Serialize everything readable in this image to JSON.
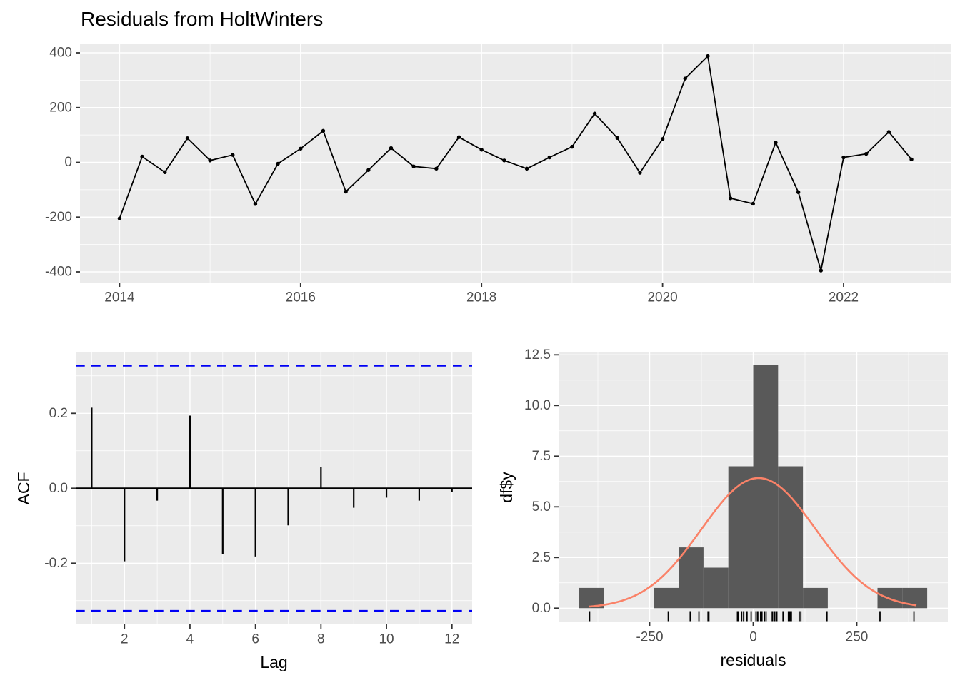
{
  "title": "Residuals from HoltWinters",
  "colors": {
    "panel_background": "#EBEBEB",
    "gridline": "#FFFFFF",
    "axis_text": "#4D4D4D",
    "axis_title": "#000000",
    "tick_mark": "#333333",
    "series_line": "#000000",
    "confidence_line": "#0000F5",
    "histogram_fill": "#595959",
    "normal_curve": "#FA8268"
  },
  "chart_data": [
    {
      "id": "residuals_time_series",
      "type": "line",
      "title": "Residuals from HoltWinters",
      "x_start": 2014,
      "x_frequency": 4,
      "values": [
        -205,
        21,
        -36,
        88,
        7,
        27,
        -152,
        -5,
        50,
        115,
        -107,
        -28,
        52,
        -15,
        -23,
        92,
        46,
        7,
        -23,
        18,
        57,
        178,
        89,
        -38,
        85,
        306,
        388,
        -131,
        -151,
        72,
        -109,
        -395,
        18,
        31,
        111,
        11
      ],
      "x_ticks": {
        "values": [
          2014,
          2016,
          2018,
          2020,
          2022
        ],
        "labels": [
          "2014",
          "2016",
          "2018",
          "2020",
          "2022"
        ]
      },
      "x_minor": [
        2015,
        2017,
        2019,
        2021,
        2023
      ],
      "y_ticks": {
        "values": [
          400,
          200,
          0,
          -200,
          -400
        ],
        "labels": [
          "400",
          "200",
          "0",
          "-200",
          "-400"
        ]
      },
      "y_minor": [
        300,
        100,
        -100,
        -300
      ],
      "xlabel": "",
      "ylabel": "",
      "xlim": [
        2013.56,
        2023.19
      ],
      "ylim": [
        -438,
        431
      ],
      "grid": true,
      "legend": "none",
      "marker": "point"
    },
    {
      "id": "acf",
      "type": "bar",
      "lags": [
        1,
        2,
        3,
        4,
        5,
        6,
        7,
        8,
        9,
        10,
        11,
        12
      ],
      "values": [
        0.215,
        -0.195,
        -0.033,
        0.194,
        -0.175,
        -0.182,
        -0.099,
        0.057,
        -0.052,
        -0.025,
        -0.033,
        -0.01
      ],
      "confidence_bounds": [
        0.327,
        -0.327
      ],
      "x_ticks": {
        "values": [
          2,
          4,
          6,
          8,
          10,
          12
        ],
        "labels": [
          "2",
          "4",
          "6",
          "8",
          "10",
          "12"
        ]
      },
      "x_minor": [
        1,
        3,
        5,
        7,
        9,
        11
      ],
      "y_ticks": {
        "values": [
          0.2,
          0.0,
          -0.2
        ],
        "labels": [
          "0.2",
          "0.0",
          "-0.2"
        ]
      },
      "y_minor": [
        0.3,
        0.1,
        -0.1,
        -0.3
      ],
      "xlabel": "Lag",
      "ylabel": "ACF",
      "xlim": [
        0.45,
        12.55
      ],
      "ylim": [
        -0.363,
        0.362
      ],
      "grid": true,
      "legend": "none"
    },
    {
      "id": "residuals_histogram",
      "type": "histogram",
      "bin_start": -420,
      "bin_width": 60,
      "counts": [
        1,
        0,
        0,
        1,
        3,
        2,
        7,
        12,
        7,
        1,
        0,
        0,
        1,
        1
      ],
      "x_ticks": {
        "values": [
          -250,
          0,
          250
        ],
        "labels": [
          "-250",
          "0",
          "250"
        ]
      },
      "x_minor": [
        -375,
        -125,
        125,
        375
      ],
      "y_ticks": {
        "values": [
          0,
          2.5,
          5,
          7.5,
          10,
          12.5
        ],
        "labels": [
          "0.0",
          "2.5",
          "5.0",
          "7.5",
          "10.0",
          "12.5"
        ]
      },
      "y_minor": [
        1.25,
        3.75,
        6.25,
        8.75,
        11.25
      ],
      "xlabel": "residuals",
      "ylabel": "df$y",
      "xlim": [
        -470,
        470
      ],
      "ylim": [
        -0.7,
        12.6
      ],
      "grid": true,
      "legend": "none",
      "normal_curve": {
        "mean": 13,
        "sd": 138,
        "peak": 6.42,
        "x_range": [
          -396,
          394
        ]
      },
      "rug_source": "residuals_time_series"
    }
  ]
}
